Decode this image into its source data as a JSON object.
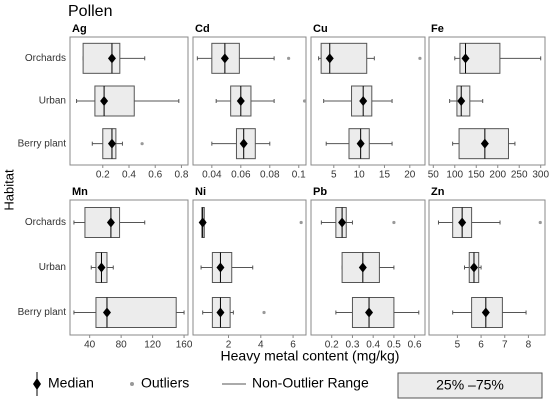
{
  "title": "Pollen",
  "y_label": "Habitat",
  "x_label": "Heavy metal content (mg/kg)",
  "categories": [
    "Orchards",
    "Urban",
    "Berry plant"
  ],
  "legend": [
    "Median",
    "Outliers",
    "Non-Outlier Range",
    "25% –75%"
  ],
  "chart_data": [
    {
      "type": "box",
      "title": "Ag",
      "xlim": [
        -0.05,
        0.85
      ],
      "xticks": [
        0.2,
        0.4,
        {
          "value": 0.6,
          "label": "0.6"
        },
        0.8
      ],
      "boxes": [
        {
          "min": 0.05,
          "q1": 0.05,
          "median": 0.27,
          "q3": 0.33,
          "max": 0.52,
          "outliers": []
        },
        {
          "min": 0.0,
          "q1": 0.14,
          "median": 0.21,
          "q3": 0.44,
          "max": 0.78,
          "outliers": []
        },
        {
          "min": 0.12,
          "q1": 0.2,
          "median": 0.27,
          "q3": 0.3,
          "max": 0.35,
          "outliers": [
            0.5
          ]
        }
      ]
    },
    {
      "type": "box",
      "title": "Cd",
      "xlim": [
        0.027,
        0.105
      ],
      "xticks": [
        0.04,
        0.06,
        0.08,
        0.1
      ],
      "boxes": [
        {
          "min": 0.03,
          "q1": 0.04,
          "median": 0.049,
          "q3": 0.059,
          "max": 0.083,
          "outliers": [
            0.093
          ]
        },
        {
          "min": 0.043,
          "q1": 0.053,
          "median": 0.06,
          "q3": 0.067,
          "max": 0.083,
          "outliers": [
            0.104
          ]
        },
        {
          "min": 0.04,
          "q1": 0.057,
          "median": 0.062,
          "q3": 0.07,
          "max": 0.08,
          "outliers": []
        }
      ]
    },
    {
      "type": "box",
      "title": "Cu",
      "xlim": [
        0.5,
        23
      ],
      "xticks": [
        5,
        10,
        15,
        20
      ],
      "boxes": [
        {
          "min": 2,
          "q1": 2.5,
          "median": 4.2,
          "q3": 11.5,
          "max": 13,
          "outliers": [
            22
          ]
        },
        {
          "min": 3,
          "q1": 8.5,
          "median": 10.8,
          "q3": 12.5,
          "max": 16.5,
          "outliers": []
        },
        {
          "min": 3.5,
          "q1": 8,
          "median": 10.3,
          "q3": 12,
          "max": 16.5,
          "outliers": []
        }
      ]
    },
    {
      "type": "box",
      "title": "Fe",
      "xlim": [
        40,
        310
      ],
      "xticks": [
        50,
        100,
        150,
        200,
        250,
        300
      ],
      "boxes": [
        {
          "min": 100,
          "q1": 112,
          "median": 125,
          "q3": 205,
          "max": 300,
          "outliers": []
        },
        {
          "min": 88,
          "q1": 105,
          "median": 115,
          "q3": 135,
          "max": 165,
          "outliers": []
        },
        {
          "min": 95,
          "q1": 110,
          "median": 170,
          "q3": 225,
          "max": 240,
          "outliers": []
        }
      ]
    },
    {
      "type": "box",
      "title": "Mn",
      "xlim": [
        15,
        165
      ],
      "xticks": [
        40,
        80,
        120,
        160
      ],
      "boxes": [
        {
          "min": 20,
          "q1": 34,
          "median": 67,
          "q3": 78,
          "max": 110,
          "outliers": []
        },
        {
          "min": 42,
          "q1": 48,
          "median": 55,
          "q3": 62,
          "max": 70,
          "outliers": []
        },
        {
          "min": 20,
          "q1": 48,
          "median": 62,
          "q3": 150,
          "max": 160,
          "outliers": []
        }
      ]
    },
    {
      "type": "box",
      "title": "Ni",
      "xlim": [
        -0.2,
        6.8
      ],
      "xticks": [
        2,
        4,
        6
      ],
      "boxes": [
        {
          "min": 0.3,
          "q1": 0.35,
          "median": 0.4,
          "q3": 0.5,
          "max": 0.55,
          "outliers": [
            6.5
          ]
        },
        {
          "min": 0.3,
          "q1": 1.0,
          "median": 1.5,
          "q3": 2.2,
          "max": 3.5,
          "outliers": []
        },
        {
          "min": 0.4,
          "q1": 1.0,
          "median": 1.5,
          "q3": 2.1,
          "max": 2.3,
          "outliers": [
            4.2
          ]
        }
      ]
    },
    {
      "type": "box",
      "title": "Pb",
      "xlim": [
        0.1,
        0.65
      ],
      "xticks": [
        0.2,
        0.3,
        0.4,
        0.5,
        0.6
      ],
      "boxes": [
        {
          "min": 0.15,
          "q1": 0.22,
          "median": 0.25,
          "q3": 0.27,
          "max": 0.3,
          "outliers": [
            0.5
          ]
        },
        {
          "min": 0.25,
          "q1": 0.25,
          "median": 0.35,
          "q3": 0.43,
          "max": 0.5,
          "outliers": []
        },
        {
          "min": 0.22,
          "q1": 0.3,
          "median": 0.38,
          "q3": 0.5,
          "max": 0.62,
          "outliers": []
        }
      ]
    },
    {
      "type": "box",
      "title": "Zn",
      "xlim": [
        3.8,
        8.7
      ],
      "xticks": [
        5,
        6,
        7,
        8
      ],
      "boxes": [
        {
          "min": 4.2,
          "q1": 4.8,
          "median": 5.2,
          "q3": 5.6,
          "max": 6.8,
          "outliers": [
            8.5
          ]
        },
        {
          "min": 5.3,
          "q1": 5.5,
          "median": 5.7,
          "q3": 5.9,
          "max": 6.0,
          "outliers": []
        },
        {
          "min": 4.8,
          "q1": 5.6,
          "median": 6.2,
          "q3": 6.9,
          "max": 7.9,
          "outliers": []
        }
      ]
    }
  ]
}
